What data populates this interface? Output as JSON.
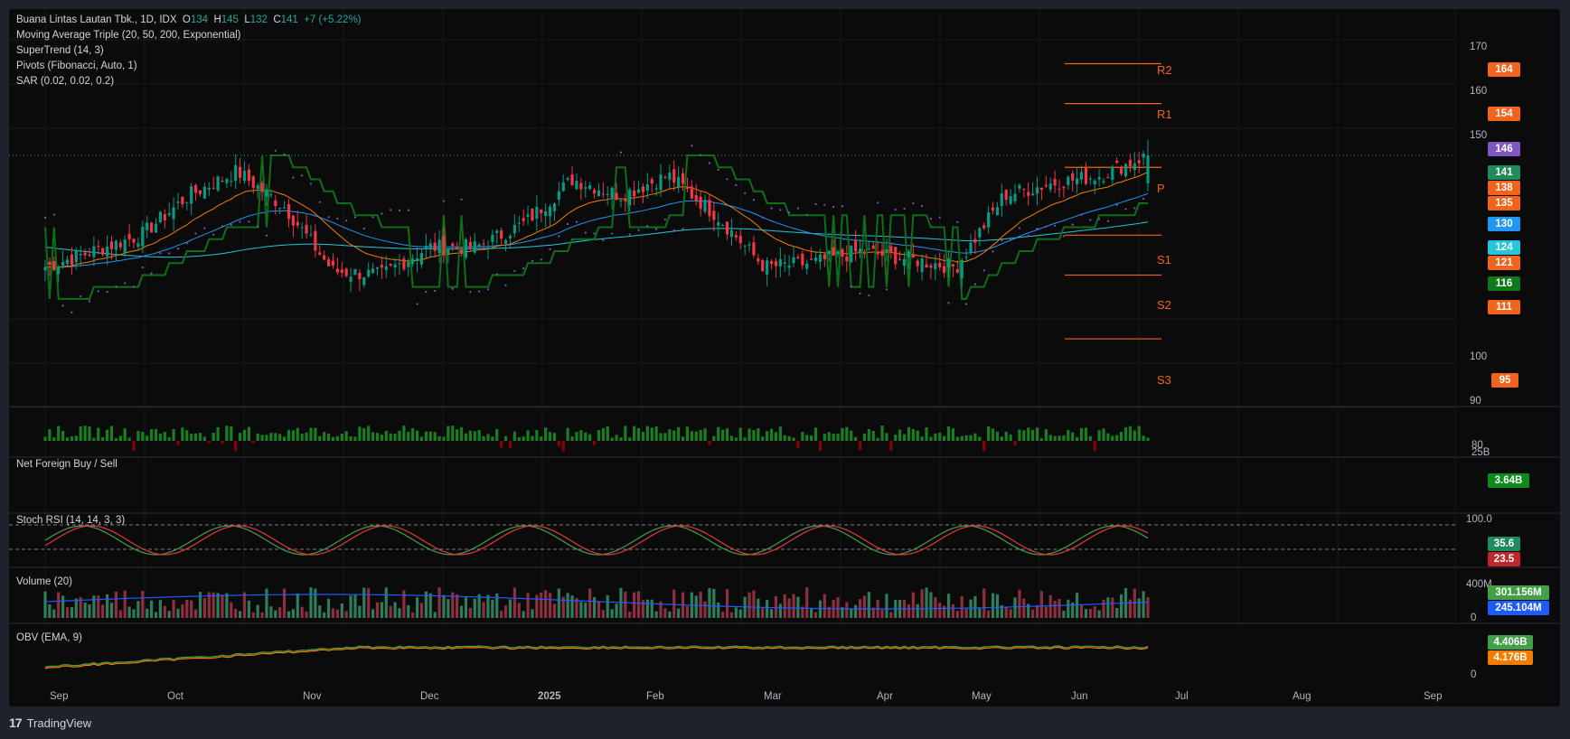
{
  "header": {
    "symbol_line": "Buana Lintas Lautan Tbk., 1D, IDX",
    "o_label": "O",
    "o_value": "134",
    "h_label": "H",
    "h_value": "145",
    "l_label": "L",
    "l_value": "132",
    "c_label": "C",
    "c_value": "141",
    "change": "+7 (+5.22%)",
    "indicators": [
      "Moving Average Triple (20, 50, 200, Exponential)",
      "SuperTrend (14, 3)",
      "Pivots (Fibonacci, Auto, 1)",
      "SAR (0.02, 0.02, 0.2)"
    ]
  },
  "price_axis": {
    "ticks": [
      "170",
      "160",
      "150",
      "100",
      "90",
      "80"
    ]
  },
  "pivot_labels": [
    "R2",
    "R1",
    "P",
    "S1",
    "S2",
    "S3"
  ],
  "price_tags": [
    {
      "value": "164",
      "color": "#f2631c"
    },
    {
      "value": "154",
      "color": "#f2631c"
    },
    {
      "value": "146",
      "color": "#7e57c2"
    },
    {
      "value": "141",
      "color": "#26a69a"
    },
    {
      "value": "138",
      "color": "#f2631c"
    },
    {
      "value": "135",
      "color": "#f2631c"
    },
    {
      "value": "130",
      "color": "#2196f3"
    },
    {
      "value": "124",
      "color": "#26c6da"
    },
    {
      "value": "121",
      "color": "#f2631c"
    },
    {
      "value": "116",
      "color": "#0f7a1b"
    },
    {
      "value": "111",
      "color": "#f2631c"
    },
    {
      "value": "95",
      "color": "#f2631c"
    }
  ],
  "panes": {
    "foreign": {
      "title": "Net Foreign Buy / Sell",
      "axis_top": "25B",
      "tag": "3.64B",
      "tag_color": "#0f8a1e"
    },
    "stoch": {
      "title": "Stoch RSI (14, 14, 3, 3)",
      "axis_top": "100.0",
      "tag_k": "35.6",
      "tag_d": "23.5"
    },
    "volume": {
      "title": "Volume (20)",
      "axis_top": "400M",
      "axis_zero": "0",
      "tag_vol": "301.156M",
      "tag_ma": "245.104M"
    },
    "obv": {
      "title": "OBV (EMA, 9)",
      "axis_zero": "0",
      "tag_obv": "4.406B",
      "tag_ema": "4.176B"
    }
  },
  "time_axis": [
    "Sep",
    "Oct",
    "Nov",
    "Dec",
    "2025",
    "Feb",
    "Mar",
    "Apr",
    "May",
    "Jun",
    "Jul",
    "Aug",
    "Sep"
  ],
  "footer": {
    "brand": "TradingView"
  },
  "chart_data": {
    "type": "candlestick",
    "title": "Buana Lintas Lautan Tbk., 1D, IDX",
    "ylim": [
      80,
      172
    ],
    "last_bar": {
      "open": 134,
      "high": 145,
      "low": 132,
      "close": 141
    },
    "pivots": {
      "R2": 164,
      "R1": 154,
      "P": 138,
      "S1": 121,
      "S2": 111,
      "S3": 95
    },
    "close_path": [
      {
        "month": "Sep",
        "value": 113
      },
      {
        "month": "Sep",
        "value": 117
      },
      {
        "month": "Oct",
        "value": 121
      },
      {
        "month": "Oct",
        "value": 131
      },
      {
        "month": "Oct",
        "value": 137
      },
      {
        "month": "Nov",
        "value": 128
      },
      {
        "month": "Nov",
        "value": 112
      },
      {
        "month": "Dec",
        "value": 111
      },
      {
        "month": "Dec",
        "value": 118
      },
      {
        "month": "2025",
        "value": 118
      },
      {
        "month": "2025",
        "value": 124
      },
      {
        "month": "Feb",
        "value": 135
      },
      {
        "month": "Feb",
        "value": 131
      },
      {
        "month": "Mar",
        "value": 136
      },
      {
        "month": "Mar",
        "value": 126
      },
      {
        "month": "Apr",
        "value": 113
      },
      {
        "month": "Apr",
        "value": 114
      },
      {
        "month": "May",
        "value": 117
      },
      {
        "month": "May",
        "value": 115
      },
      {
        "month": "Jun",
        "value": 113
      },
      {
        "month": "Jun",
        "value": 131
      },
      {
        "month": "Jul",
        "value": 134
      },
      {
        "month": "Jul",
        "value": 136
      },
      {
        "month": "Jul",
        "value": 141
      }
    ]
  }
}
